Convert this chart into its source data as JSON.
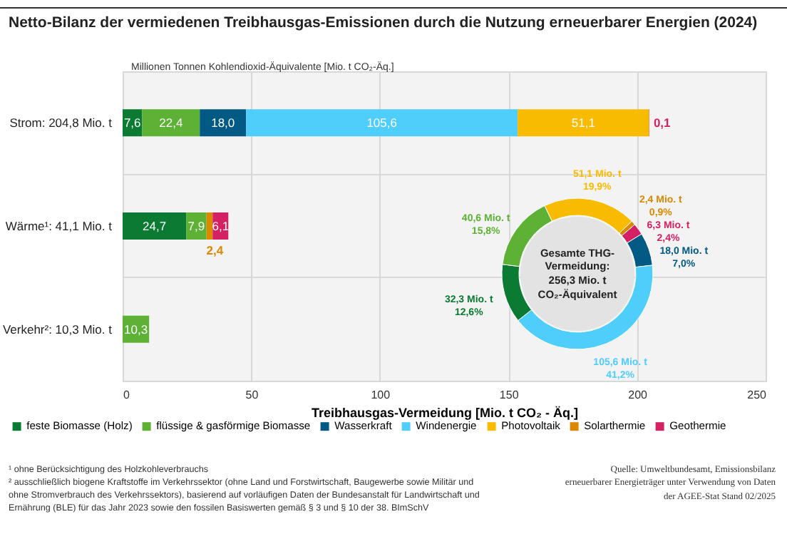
{
  "chart_data": [
    {
      "type": "bar",
      "orientation": "horizontal",
      "stacked": true,
      "title": "Netto-Bilanz der vermiedenen Treibhausgas-Emissionen durch die Nutzung erneuerbarer Energien (2024)",
      "subtitle": "Millionen Tonnen Kohlendioxid-Äquivalente [Mio. t CO₂-Äq.]",
      "xlabel": "Treibhausgas-Vermeidung [Mio. t CO₂ - Äq.]",
      "categories": [
        "Strom: 204,8 Mio. t",
        "Wärme¹: 41,1 Mio. t",
        "Verkehr²: 10,3 Mio. t"
      ],
      "series": [
        {
          "name": "feste Biomasse (Holz)",
          "color": "#0b7a32",
          "values": [
            7.6,
            24.7,
            null
          ],
          "value_labels": [
            "7,6",
            "24,7",
            null
          ]
        },
        {
          "name": "flüssige & gasförmige Biomasse",
          "color": "#5db135",
          "values": [
            22.4,
            7.9,
            10.3
          ],
          "value_labels": [
            "22,4",
            "7,9",
            "10,3"
          ]
        },
        {
          "name": "Wasserkraft",
          "color": "#005a84",
          "values": [
            18.0,
            null,
            null
          ],
          "value_labels": [
            "18,0",
            null,
            null
          ]
        },
        {
          "name": "Windenergie",
          "color": "#4fcdfb",
          "values": [
            105.6,
            null,
            null
          ],
          "value_labels": [
            "105,6",
            null,
            null
          ]
        },
        {
          "name": "Photovoltaik",
          "color": "#f9bb00",
          "values": [
            51.1,
            null,
            null
          ],
          "value_labels": [
            "51,1",
            null,
            null
          ]
        },
        {
          "name": "Solarthermie",
          "color": "#d98800",
          "values": [
            null,
            2.4,
            null
          ],
          "value_labels": [
            null,
            "2,4",
            null
          ]
        },
        {
          "name": "Geothermie",
          "color": "#d32163",
          "values": [
            0.1,
            6.1,
            null
          ],
          "value_labels": [
            "0,1",
            "6,1",
            null
          ]
        }
      ],
      "xlim": [
        0,
        250
      ],
      "xticks": [
        0,
        50,
        100,
        150,
        200,
        250
      ],
      "grid": true,
      "legend": "bottom",
      "annotations": [
        "¹ ohne Berücksichtigung des Holzkohleverbrauchs",
        "² ausschließlich biogene Kraftstoffe im Verkehrssektor (ohne Land und Forstwirtschaft, Baugewerbe sowie Militär und ohne Stromverbrauch des Verkehrssektors), basierend auf vorläufigen Daten der Bundesanstalt für Landwirtschaft und Ernährung (BLE) für das Jahr 2023 sowie den fossilen Basiswerten gemäß § 3 und § 10 der 38. BImSchV",
        "Quelle: Umweltbundesamt, Emissionsbilanz erneuerbarer Energieträger unter Verwendung von Daten der AGEE-Stat Stand 02/2025"
      ]
    },
    {
      "type": "donut",
      "categories": [
        null,
        null,
        null,
        null,
        null,
        null,
        null
      ],
      "values": [
        51.1,
        2.4,
        6.3,
        18.0,
        105.6,
        32.3,
        40.6
      ],
      "colors": [
        "#f9bb00",
        "#d98800",
        "#d32163",
        "#005a84",
        "#4fcdfb",
        "#0b7a32",
        "#5db135"
      ],
      "value_labels": [
        "51,1 Mio. t\n19,9%",
        "2,4 Mio. t\n0,9%",
        "6,3 Mio. t\n2,4%",
        "18,0 Mio. t\n7,0%",
        "105,6 Mio. t\n41,2%",
        "32,3 Mio. t\n12,6%",
        "40,6 Mio. t\n15,8%"
      ],
      "annotations": [
        "Gesamte THG-Vermeidung: 256,3 Mio. t CO₂-Äquivalent"
      ]
    }
  ]
}
